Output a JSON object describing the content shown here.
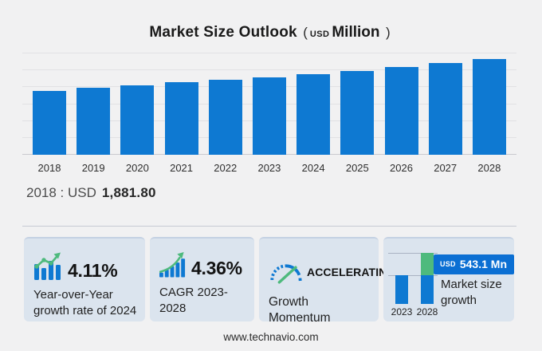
{
  "title": {
    "main": "Market Size Outlook",
    "open_paren": "(",
    "currency": "USD",
    "unit": "Million",
    "close_paren": ")"
  },
  "chart_data": {
    "type": "bar",
    "title": "Market Size Outlook (USD Million)",
    "categories": [
      "2018",
      "2019",
      "2020",
      "2021",
      "2022",
      "2023",
      "2024",
      "2025",
      "2026",
      "2027",
      "2028"
    ],
    "values": [
      1881.8,
      1975,
      2045,
      2160,
      2210,
      2290,
      2384,
      2480,
      2595,
      2710,
      2833
    ],
    "xlabel": "",
    "ylabel": "USD Million",
    "ylim": [
      0,
      3000
    ],
    "y_gridline_step": 500,
    "grid": true,
    "legend": false,
    "bar_color": "#0e79d2",
    "annotations": [
      "2018 : USD 1,881.80"
    ]
  },
  "annotation": {
    "prefix": "2018 : USD",
    "value": "1,881.80"
  },
  "cards": [
    {
      "icon": "growth-bars-trend-icon",
      "stat": "4.11%",
      "description": "Year-over-Year growth rate of 2024"
    },
    {
      "icon": "ascending-bars-arrow-icon",
      "stat": "4.36%",
      "description": "CAGR 2023-2028"
    },
    {
      "icon": "speedometer-icon",
      "stat": "ACCELERATING",
      "description": "Growth Momentum"
    },
    {
      "icon": "mini-bar-chart",
      "badge": {
        "currency": "USD",
        "value": "543.1 Mn"
      },
      "description": "Market size growth",
      "mini_chart": {
        "type": "bar",
        "categories": [
          "2023",
          "2028"
        ],
        "growth_segment": "543.1 Mn on top of 2028 bar"
      }
    }
  ],
  "footer": {
    "website": "www.technavio.com"
  },
  "colors": {
    "bar_blue": "#0e79d2",
    "accent_green": "#4eba7d",
    "badge_blue": "#0b6fd3",
    "card_bg": "#dbe4ee",
    "page_bg": "#f1f1f2",
    "gridline": "#e1e1e4",
    "baseline": "#c9c9ce"
  }
}
